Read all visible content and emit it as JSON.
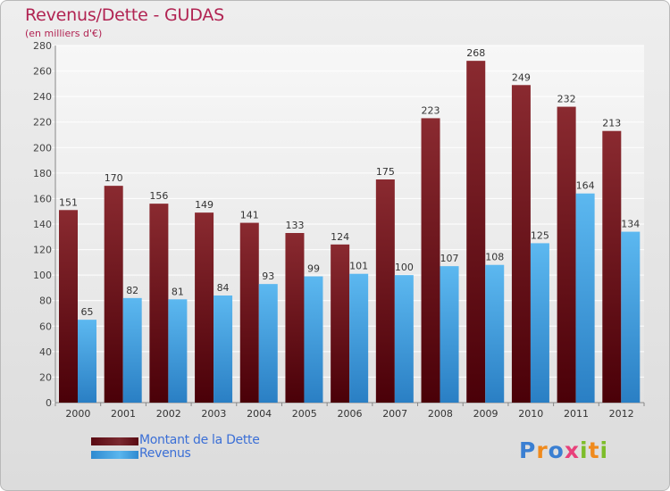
{
  "title": "Revenus/Dette - GUDAS",
  "subtitle": "(en milliers d'€)",
  "logo": {
    "text": "Proxiti",
    "letters": [
      "P",
      "r",
      "o",
      "x",
      "i",
      "t",
      "i"
    ]
  },
  "colors": {
    "dette": "#6b1a22",
    "revenus": "#4aa8e6",
    "title": "#b12352",
    "legend_text": "#3b6fd6"
  },
  "chart_data": {
    "type": "bar",
    "title": "Revenus/Dette - GUDAS",
    "ylabel": "(en milliers d'€)",
    "categories": [
      "2000",
      "2001",
      "2002",
      "2003",
      "2004",
      "2005",
      "2006",
      "2007",
      "2008",
      "2009",
      "2010",
      "2011",
      "2012"
    ],
    "series": [
      {
        "name": "Montant de la Dette",
        "values": [
          151,
          170,
          156,
          149,
          141,
          133,
          124,
          175,
          223,
          268,
          249,
          232,
          213
        ]
      },
      {
        "name": "Revenus",
        "values": [
          65,
          82,
          81,
          84,
          93,
          99,
          101,
          100,
          107,
          108,
          125,
          164,
          134
        ]
      }
    ],
    "ylim": [
      0,
      280
    ],
    "yticks": [
      0,
      20,
      40,
      60,
      80,
      100,
      120,
      140,
      160,
      180,
      200,
      220,
      240,
      260,
      280
    ],
    "grid": true,
    "legend": "bottom-left"
  }
}
